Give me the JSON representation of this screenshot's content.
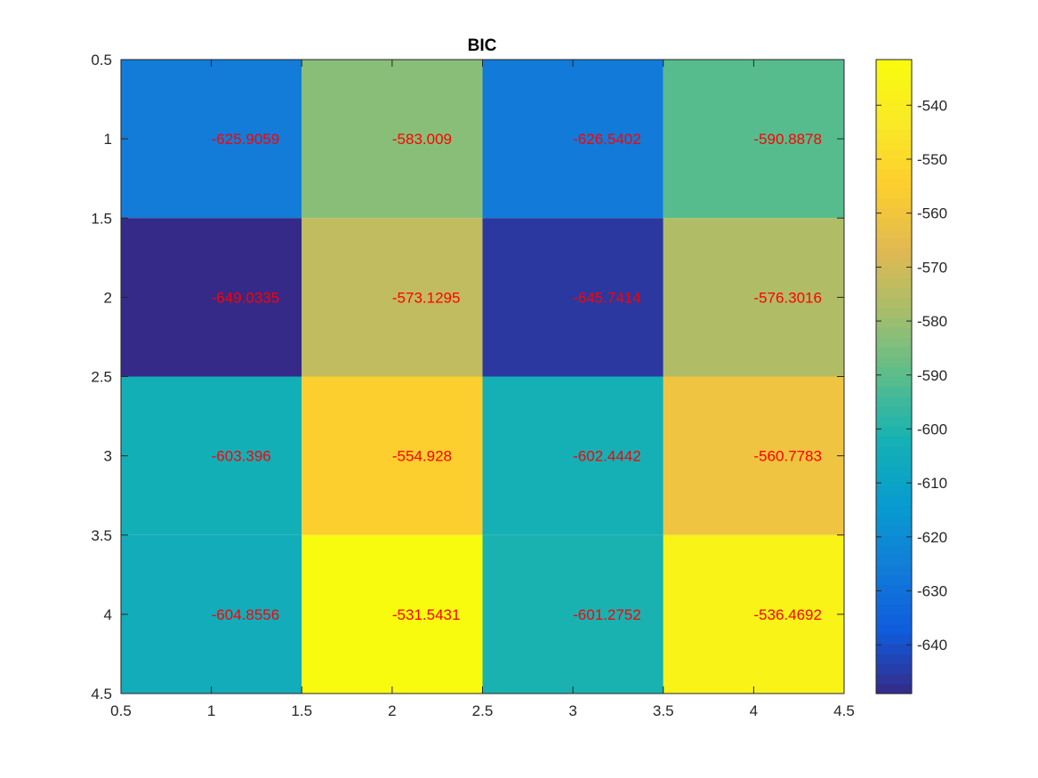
{
  "chart_data": {
    "type": "heatmap",
    "title": "BIC",
    "xlabel": "",
    "ylabel": "",
    "x": [
      1,
      2,
      3,
      4
    ],
    "y": [
      1,
      2,
      3,
      4
    ],
    "xlim": [
      0.5,
      4.5
    ],
    "ylim": [
      0.5,
      4.5
    ],
    "y_direction": "reverse",
    "xticks": [
      "0.5",
      "1",
      "1.5",
      "2",
      "2.5",
      "3",
      "3.5",
      "4",
      "4.5"
    ],
    "yticks": [
      "0.5",
      "1",
      "1.5",
      "2",
      "2.5",
      "3",
      "3.5",
      "4",
      "4.5"
    ],
    "values": [
      [
        -625.9059,
        -583.009,
        -626.5402,
        -590.8878
      ],
      [
        -649.0335,
        -573.1295,
        -645.7414,
        -576.3016
      ],
      [
        -603.396,
        -554.928,
        -602.4442,
        -560.7783
      ],
      [
        -604.8556,
        -531.5431,
        -601.2752,
        -536.4692
      ]
    ],
    "cell_labels": [
      [
        "-625.9059",
        "-583.009",
        "-626.5402",
        "-590.8878"
      ],
      [
        "-649.0335",
        "-573.1295",
        "-645.7414",
        "-576.3016"
      ],
      [
        "-603.396",
        "-554.928",
        "-602.4442",
        "-560.7783"
      ],
      [
        "-604.8556",
        "-531.5431",
        "-601.2752",
        "-536.4692"
      ]
    ],
    "cell_label_color": "#ff0000",
    "colormap": "parula",
    "colorbar": {
      "range": [
        -649.0335,
        -531.5431
      ],
      "ticks": [
        -640,
        -630,
        -620,
        -610,
        -600,
        -590,
        -580,
        -570,
        -560,
        -550,
        -540
      ],
      "tick_labels": [
        "-640",
        "-630",
        "-620",
        "-610",
        "-600",
        "-590",
        "-580",
        "-570",
        "-560",
        "-550",
        "-540"
      ],
      "location": "right"
    },
    "grid": false
  }
}
